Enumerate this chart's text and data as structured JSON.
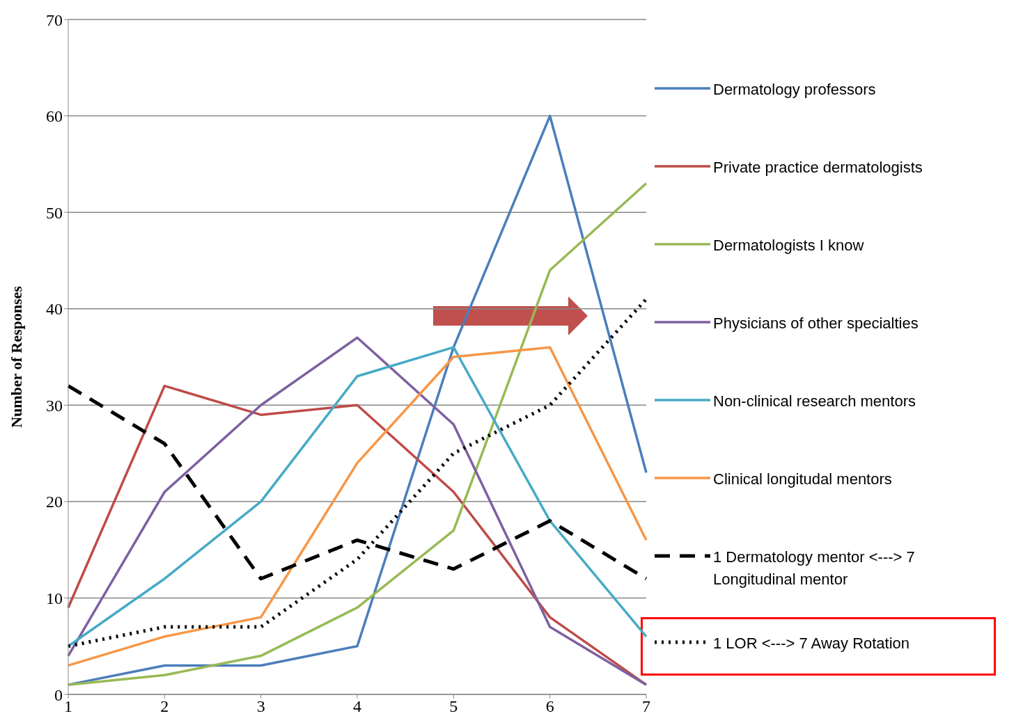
{
  "chart_data": {
    "type": "line",
    "ylabel": "Number of Responses",
    "categories": [
      "1",
      "2",
      "3",
      "4",
      "5",
      "6",
      "7"
    ],
    "series": [
      {
        "name": "Dermatology professors",
        "color": "#4a7ebb",
        "values": [
          1,
          3,
          3,
          5,
          36,
          60,
          23
        ]
      },
      {
        "name": "Private practice dermatologists",
        "color": "#be4b48",
        "values": [
          9,
          32,
          29,
          30,
          21,
          8,
          1
        ]
      },
      {
        "name": "Dermatologists I know",
        "color": "#98b954",
        "values": [
          1,
          2,
          4,
          9,
          17,
          44,
          53
        ]
      },
      {
        "name": "Physicians of other specialties",
        "color": "#7d60a0",
        "values": [
          4,
          21,
          30,
          37,
          28,
          7,
          1
        ]
      },
      {
        "name": "Non-clinical research mentors",
        "color": "#46aac5",
        "values": [
          5,
          12,
          20,
          33,
          36,
          18,
          6
        ]
      },
      {
        "name": "Clinical longitudal mentors",
        "color": "#f79646",
        "values": [
          3,
          6,
          8,
          24,
          35,
          36,
          16
        ]
      },
      {
        "name": "1 Dermatology mentor <---> 7 Longitudinal mentor",
        "color": "#000000",
        "line_style": "dashed",
        "values": [
          32,
          26,
          12,
          16,
          13,
          18,
          12
        ]
      },
      {
        "name": "1 LOR <---> 7 Away Rotation",
        "color": "#000000",
        "line_style": "dotted",
        "values": [
          5,
          7,
          7,
          14,
          25,
          30,
          41
        ]
      }
    ],
    "ylim": [
      0,
      70
    ],
    "yticks": [
      0,
      10,
      20,
      30,
      40,
      50,
      60,
      70
    ],
    "grid": "y",
    "legend": "right",
    "marker": "none"
  }
}
